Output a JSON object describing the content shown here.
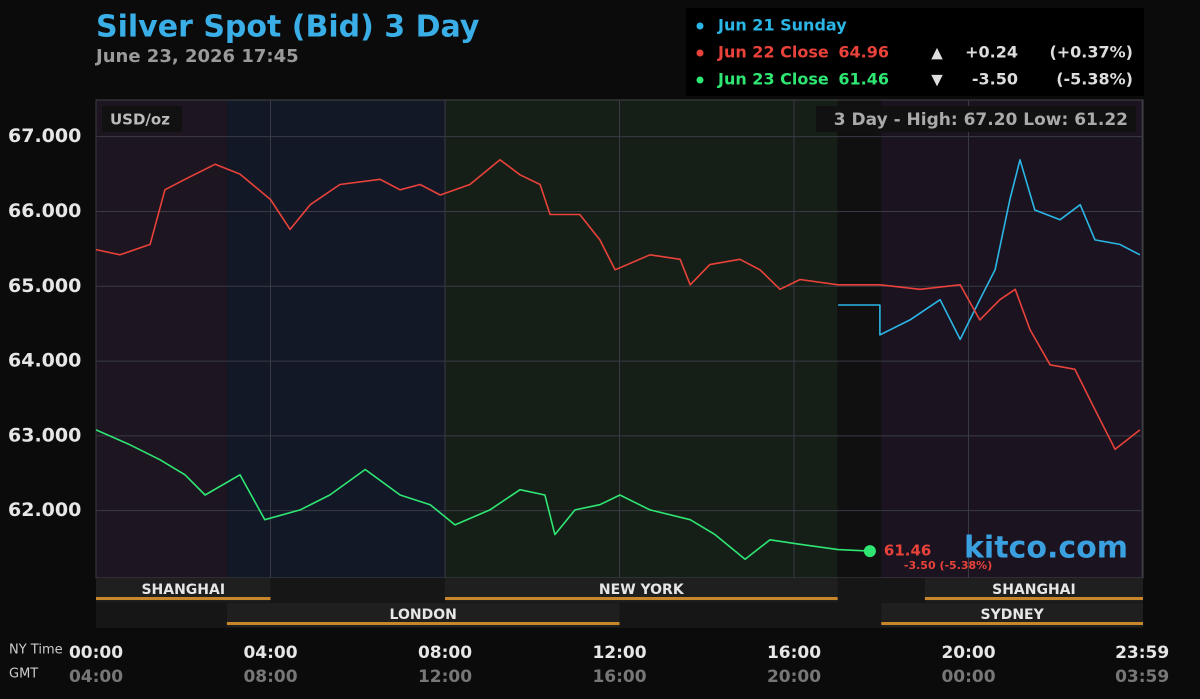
{
  "chart_data": {
    "type": "line",
    "title": "Silver Spot (Bid) 3 Day",
    "subtitle": "June 23, 2026 17:45",
    "unit_label": "USD/oz",
    "range_label": "3 Day - High: 67.20  Low: 61.22",
    "brand": "kitco.com",
    "end_annotation": "-3.50 (-5.38%)",
    "x_label": "NY Time",
    "x2_label": "GMT",
    "xlim": [
      0,
      24
    ],
    "xticks": [
      {
        "value": 0,
        "label": "00:00"
      },
      {
        "value": 4,
        "label": "04:00"
      },
      {
        "value": 8,
        "label": "08:00"
      },
      {
        "value": 12,
        "label": "12:00"
      },
      {
        "value": 16,
        "label": "16:00"
      },
      {
        "value": 20,
        "label": "20:00"
      },
      {
        "value": 23.98,
        "label": "23:59"
      }
    ],
    "x2tick_labels": [
      "04:00",
      "08:00",
      "12:00",
      "16:00",
      "20:00",
      "00:00",
      "03:59"
    ],
    "ylim": [
      61.1,
      67.49
    ],
    "yticks": [
      {
        "value": 62,
        "label": "62.000"
      },
      {
        "value": 63,
        "label": "63.000"
      },
      {
        "value": 64,
        "label": "64.000"
      },
      {
        "value": 65,
        "label": "65.000"
      },
      {
        "value": 66,
        "label": "66.000"
      },
      {
        "value": 67,
        "label": "67.000"
      }
    ],
    "grid": true,
    "shading": [
      {
        "start": 0,
        "end": 3,
        "color": "#1d1520"
      },
      {
        "start": 3,
        "end": 8,
        "color": "#121826"
      },
      {
        "start": 8,
        "end": 17,
        "color": "#161f17"
      },
      {
        "start": 17,
        "end": 18,
        "color": "#101010"
      },
      {
        "start": 18,
        "end": 24,
        "color": "#1b1420"
      }
    ],
    "sessions": [
      {
        "name": "SHANGHAI",
        "start": 0,
        "end": 4,
        "row": 1
      },
      {
        "name": "NEW YORK",
        "start": 8,
        "end": 17,
        "row": 1
      },
      {
        "name": "SHANGHAI",
        "start": 19,
        "end": 24,
        "row": 1
      },
      {
        "name": "LONDON",
        "start": 3,
        "end": 12,
        "row": 2
      },
      {
        "name": "SYDNEY",
        "start": 18,
        "end": 24,
        "row": 2
      }
    ],
    "series": [
      {
        "name": "Jun 21 Sunday",
        "color": "#2bb6e6",
        "x": [
          17.01,
          17.97,
          17.97,
          18.66,
          19.35,
          19.81,
          20.26,
          20.61,
          20.95,
          21.18,
          21.52,
          22.1,
          22.56,
          22.9,
          23.47,
          23.93
        ],
        "values": [
          64.75,
          64.75,
          64.35,
          64.55,
          64.82,
          64.29,
          64.82,
          65.22,
          66.16,
          66.69,
          66.02,
          65.89,
          66.09,
          65.62,
          65.56,
          65.42
        ]
      },
      {
        "name": "Jun 22 Close",
        "color": "#e8423a",
        "close": 64.96,
        "arrow": "▲",
        "change": "+0.24",
        "change_pct": "(+0.37%)",
        "x": [
          0,
          0.55,
          1.24,
          1.58,
          2.04,
          2.73,
          3.3,
          4.0,
          4.45,
          4.91,
          5.59,
          6.51,
          6.97,
          7.43,
          7.89,
          8.57,
          9.26,
          9.72,
          10.18,
          10.41,
          11.09,
          11.55,
          11.9,
          12.7,
          13.39,
          13.62,
          14.07,
          14.76,
          15.22,
          15.68,
          16.14,
          17.01,
          17.97,
          18.89,
          19.81,
          20.26,
          20.72,
          21.07,
          21.41,
          21.87,
          22.44,
          22.9,
          23.36,
          23.93
        ],
        "values": [
          65.49,
          65.42,
          65.56,
          66.29,
          66.43,
          66.63,
          66.5,
          66.16,
          65.76,
          66.09,
          66.36,
          66.43,
          66.29,
          66.36,
          66.22,
          66.36,
          66.69,
          66.49,
          66.36,
          65.96,
          65.96,
          65.62,
          65.22,
          65.42,
          65.36,
          65.02,
          65.29,
          65.36,
          65.22,
          64.96,
          65.09,
          65.02,
          65.02,
          64.96,
          65.02,
          64.55,
          64.82,
          64.96,
          64.42,
          63.95,
          63.89,
          63.35,
          62.82,
          63.08
        ]
      },
      {
        "name": "Jun 23 Close",
        "color": "#2fe673",
        "close": 61.46,
        "arrow": "▼",
        "change": "-3.50",
        "change_pct": "(-5.38%)",
        "x": [
          0,
          0.78,
          1.47,
          2.04,
          2.5,
          3.3,
          3.87,
          4.68,
          5.36,
          6.17,
          6.97,
          7.66,
          8.23,
          9.03,
          9.72,
          10.29,
          10.52,
          10.98,
          11.55,
          12.01,
          12.7,
          13.62,
          14.19,
          14.88,
          15.45,
          16.14,
          17.01,
          17.74
        ],
        "values": [
          63.08,
          62.88,
          62.68,
          62.48,
          62.21,
          62.48,
          61.88,
          62.01,
          62.21,
          62.55,
          62.21,
          62.08,
          61.81,
          62.01,
          62.28,
          62.21,
          61.68,
          62.01,
          62.08,
          62.21,
          62.01,
          61.88,
          61.68,
          61.35,
          61.61,
          61.55,
          61.48,
          61.46
        ]
      }
    ]
  }
}
